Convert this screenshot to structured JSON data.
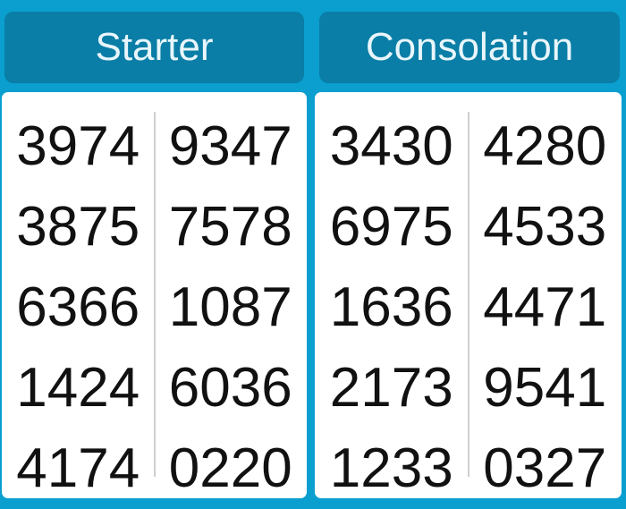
{
  "sections": [
    {
      "title": "Starter",
      "left": [
        "3974",
        "3875",
        "6366",
        "1424",
        "4174"
      ],
      "right": [
        "9347",
        "7578",
        "1087",
        "6036",
        "0220"
      ]
    },
    {
      "title": "Consolation",
      "left": [
        "3430",
        "6975",
        "1636",
        "2173",
        "1233"
      ],
      "right": [
        "4280",
        "4533",
        "4471",
        "9541",
        "0327"
      ]
    }
  ],
  "colors": {
    "background": "#0a9fcf",
    "header": "#0a7ea6",
    "card": "#ffffff"
  }
}
